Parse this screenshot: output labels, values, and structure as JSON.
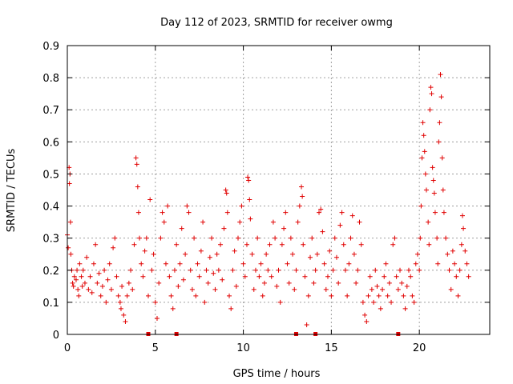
{
  "chart_data": {
    "type": "scatter",
    "title": "Day 112 of 2023, SRMTID for receiver owmg",
    "xlabel": "GPS time / hours",
    "ylabel": "SRMTID / TECUs",
    "xlim": [
      0,
      24
    ],
    "ylim": [
      0,
      0.9
    ],
    "xticks": [
      0,
      5,
      10,
      15,
      20
    ],
    "yticks": [
      0,
      0.1,
      0.2,
      0.3,
      0.4,
      0.5,
      0.6,
      0.7,
      0.8,
      0.9
    ],
    "xtick_labels": [
      "0",
      "5",
      "10",
      "15",
      "20"
    ],
    "ytick_labels": [
      "0",
      "0.1",
      "0.2",
      "0.3",
      "0.4",
      "0.5",
      "0.6",
      "0.7",
      "0.8",
      "0.9"
    ],
    "grid": true,
    "marker": "plus",
    "color": "#e00000",
    "zero_markers_x": [
      4.6,
      6.2,
      13.0,
      14.1,
      18.8
    ],
    "series": [
      {
        "name": "SRMTID",
        "points": [
          [
            0.0,
            0.31
          ],
          [
            0.05,
            0.27
          ],
          [
            0.1,
            0.52
          ],
          [
            0.12,
            0.47
          ],
          [
            0.15,
            0.5
          ],
          [
            0.18,
            0.35
          ],
          [
            0.2,
            0.25
          ],
          [
            0.25,
            0.2
          ],
          [
            0.3,
            0.16
          ],
          [
            0.35,
            0.15
          ],
          [
            0.4,
            0.18
          ],
          [
            0.5,
            0.17
          ],
          [
            0.55,
            0.2
          ],
          [
            0.6,
            0.14
          ],
          [
            0.65,
            0.12
          ],
          [
            0.7,
            0.22
          ],
          [
            0.8,
            0.18
          ],
          [
            0.85,
            0.15
          ],
          [
            0.9,
            0.2
          ],
          [
            1.0,
            0.16
          ],
          [
            1.1,
            0.24
          ],
          [
            1.2,
            0.14
          ],
          [
            1.3,
            0.18
          ],
          [
            1.4,
            0.13
          ],
          [
            1.5,
            0.22
          ],
          [
            1.6,
            0.28
          ],
          [
            1.7,
            0.16
          ],
          [
            1.8,
            0.19
          ],
          [
            1.9,
            0.12
          ],
          [
            2.0,
            0.15
          ],
          [
            2.1,
            0.2
          ],
          [
            2.2,
            0.1
          ],
          [
            2.3,
            0.17
          ],
          [
            2.4,
            0.22
          ],
          [
            2.5,
            0.14
          ],
          [
            2.6,
            0.27
          ],
          [
            2.7,
            0.3
          ],
          [
            2.8,
            0.18
          ],
          [
            2.9,
            0.12
          ],
          [
            3.0,
            0.1
          ],
          [
            3.05,
            0.08
          ],
          [
            3.1,
            0.15
          ],
          [
            3.2,
            0.06
          ],
          [
            3.3,
            0.04
          ],
          [
            3.4,
            0.12
          ],
          [
            3.5,
            0.16
          ],
          [
            3.6,
            0.2
          ],
          [
            3.7,
            0.14
          ],
          [
            3.8,
            0.28
          ],
          [
            3.9,
            0.55
          ],
          [
            3.95,
            0.53
          ],
          [
            4.0,
            0.46
          ],
          [
            4.05,
            0.38
          ],
          [
            4.1,
            0.3
          ],
          [
            4.2,
            0.22
          ],
          [
            4.3,
            0.18
          ],
          [
            4.4,
            0.26
          ],
          [
            4.5,
            0.3
          ],
          [
            4.6,
            0.12
          ],
          [
            4.7,
            0.42
          ],
          [
            4.8,
            0.2
          ],
          [
            4.9,
            0.25
          ],
          [
            5.0,
            0.1
          ],
          [
            5.1,
            0.05
          ],
          [
            5.2,
            0.16
          ],
          [
            5.3,
            0.3
          ],
          [
            5.4,
            0.38
          ],
          [
            5.5,
            0.35
          ],
          [
            5.6,
            0.22
          ],
          [
            5.7,
            0.4
          ],
          [
            5.8,
            0.18
          ],
          [
            5.9,
            0.12
          ],
          [
            6.0,
            0.08
          ],
          [
            6.1,
            0.2
          ],
          [
            6.2,
            0.28
          ],
          [
            6.3,
            0.15
          ],
          [
            6.4,
            0.22
          ],
          [
            6.5,
            0.33
          ],
          [
            6.6,
            0.17
          ],
          [
            6.7,
            0.25
          ],
          [
            6.8,
            0.4
          ],
          [
            6.9,
            0.38
          ],
          [
            7.0,
            0.2
          ],
          [
            7.1,
            0.14
          ],
          [
            7.2,
            0.3
          ],
          [
            7.3,
            0.12
          ],
          [
            7.4,
            0.22
          ],
          [
            7.5,
            0.18
          ],
          [
            7.6,
            0.26
          ],
          [
            7.7,
            0.35
          ],
          [
            7.8,
            0.1
          ],
          [
            7.9,
            0.2
          ],
          [
            8.0,
            0.16
          ],
          [
            8.1,
            0.24
          ],
          [
            8.2,
            0.3
          ],
          [
            8.3,
            0.19
          ],
          [
            8.4,
            0.14
          ],
          [
            8.5,
            0.25
          ],
          [
            8.6,
            0.2
          ],
          [
            8.7,
            0.28
          ],
          [
            8.8,
            0.17
          ],
          [
            8.9,
            0.33
          ],
          [
            9.0,
            0.45
          ],
          [
            9.05,
            0.44
          ],
          [
            9.1,
            0.38
          ],
          [
            9.2,
            0.12
          ],
          [
            9.3,
            0.08
          ],
          [
            9.4,
            0.2
          ],
          [
            9.5,
            0.26
          ],
          [
            9.6,
            0.15
          ],
          [
            9.7,
            0.3
          ],
          [
            9.8,
            0.35
          ],
          [
            9.9,
            0.4
          ],
          [
            10.0,
            0.22
          ],
          [
            10.1,
            0.18
          ],
          [
            10.2,
            0.28
          ],
          [
            10.25,
            0.49
          ],
          [
            10.3,
            0.48
          ],
          [
            10.35,
            0.42
          ],
          [
            10.4,
            0.36
          ],
          [
            10.5,
            0.25
          ],
          [
            10.6,
            0.14
          ],
          [
            10.7,
            0.2
          ],
          [
            10.8,
            0.3
          ],
          [
            10.9,
            0.18
          ],
          [
            11.0,
            0.22
          ],
          [
            11.1,
            0.12
          ],
          [
            11.2,
            0.16
          ],
          [
            11.3,
            0.25
          ],
          [
            11.4,
            0.2
          ],
          [
            11.5,
            0.28
          ],
          [
            11.6,
            0.18
          ],
          [
            11.7,
            0.35
          ],
          [
            11.8,
            0.3
          ],
          [
            11.9,
            0.15
          ],
          [
            12.0,
            0.2
          ],
          [
            12.1,
            0.1
          ],
          [
            12.2,
            0.28
          ],
          [
            12.3,
            0.33
          ],
          [
            12.4,
            0.38
          ],
          [
            12.5,
            0.22
          ],
          [
            12.6,
            0.16
          ],
          [
            12.7,
            0.3
          ],
          [
            12.8,
            0.25
          ],
          [
            12.9,
            0.14
          ],
          [
            13.0,
            0.2
          ],
          [
            13.1,
            0.35
          ],
          [
            13.2,
            0.4
          ],
          [
            13.3,
            0.46
          ],
          [
            13.35,
            0.43
          ],
          [
            13.4,
            0.28
          ],
          [
            13.5,
            0.18
          ],
          [
            13.6,
            0.03
          ],
          [
            13.7,
            0.12
          ],
          [
            13.8,
            0.24
          ],
          [
            13.9,
            0.3
          ],
          [
            14.0,
            0.16
          ],
          [
            14.1,
            0.2
          ],
          [
            14.2,
            0.25
          ],
          [
            14.3,
            0.38
          ],
          [
            14.4,
            0.39
          ],
          [
            14.5,
            0.32
          ],
          [
            14.6,
            0.22
          ],
          [
            14.7,
            0.14
          ],
          [
            14.8,
            0.18
          ],
          [
            14.9,
            0.26
          ],
          [
            15.0,
            0.12
          ],
          [
            15.1,
            0.2
          ],
          [
            15.2,
            0.3
          ],
          [
            15.3,
            0.24
          ],
          [
            15.4,
            0.16
          ],
          [
            15.5,
            0.34
          ],
          [
            15.6,
            0.38
          ],
          [
            15.7,
            0.28
          ],
          [
            15.8,
            0.2
          ],
          [
            15.9,
            0.12
          ],
          [
            16.0,
            0.22
          ],
          [
            16.1,
            0.3
          ],
          [
            16.2,
            0.37
          ],
          [
            16.3,
            0.25
          ],
          [
            16.4,
            0.16
          ],
          [
            16.5,
            0.2
          ],
          [
            16.6,
            0.35
          ],
          [
            16.7,
            0.28
          ],
          [
            16.8,
            0.1
          ],
          [
            16.9,
            0.06
          ],
          [
            17.0,
            0.04
          ],
          [
            17.1,
            0.12
          ],
          [
            17.2,
            0.18
          ],
          [
            17.3,
            0.14
          ],
          [
            17.4,
            0.1
          ],
          [
            17.5,
            0.2
          ],
          [
            17.6,
            0.15
          ],
          [
            17.7,
            0.12
          ],
          [
            17.8,
            0.08
          ],
          [
            17.9,
            0.14
          ],
          [
            18.0,
            0.18
          ],
          [
            18.1,
            0.22
          ],
          [
            18.2,
            0.12
          ],
          [
            18.3,
            0.16
          ],
          [
            18.4,
            0.1
          ],
          [
            18.5,
            0.28
          ],
          [
            18.6,
            0.3
          ],
          [
            18.7,
            0.18
          ],
          [
            18.8,
            0.14
          ],
          [
            18.9,
            0.2
          ],
          [
            19.0,
            0.16
          ],
          [
            19.1,
            0.12
          ],
          [
            19.2,
            0.08
          ],
          [
            19.3,
            0.15
          ],
          [
            19.4,
            0.2
          ],
          [
            19.5,
            0.18
          ],
          [
            19.6,
            0.12
          ],
          [
            19.7,
            0.1
          ],
          [
            19.8,
            0.22
          ],
          [
            19.9,
            0.25
          ],
          [
            20.0,
            0.2
          ],
          [
            20.05,
            0.3
          ],
          [
            20.1,
            0.4
          ],
          [
            20.15,
            0.55
          ],
          [
            20.2,
            0.66
          ],
          [
            20.25,
            0.62
          ],
          [
            20.3,
            0.57
          ],
          [
            20.35,
            0.5
          ],
          [
            20.4,
            0.45
          ],
          [
            20.5,
            0.35
          ],
          [
            20.55,
            0.28
          ],
          [
            20.6,
            0.7
          ],
          [
            20.65,
            0.77
          ],
          [
            20.7,
            0.75
          ],
          [
            20.75,
            0.52
          ],
          [
            20.8,
            0.48
          ],
          [
            20.85,
            0.44
          ],
          [
            20.9,
            0.38
          ],
          [
            21.0,
            0.3
          ],
          [
            21.05,
            0.22
          ],
          [
            21.1,
            0.6
          ],
          [
            21.15,
            0.66
          ],
          [
            21.2,
            0.81
          ],
          [
            21.25,
            0.74
          ],
          [
            21.3,
            0.55
          ],
          [
            21.35,
            0.45
          ],
          [
            21.4,
            0.38
          ],
          [
            21.5,
            0.3
          ],
          [
            21.6,
            0.25
          ],
          [
            21.7,
            0.2
          ],
          [
            21.8,
            0.14
          ],
          [
            21.9,
            0.26
          ],
          [
            22.0,
            0.22
          ],
          [
            22.1,
            0.18
          ],
          [
            22.2,
            0.12
          ],
          [
            22.3,
            0.2
          ],
          [
            22.4,
            0.28
          ],
          [
            22.45,
            0.37
          ],
          [
            22.5,
            0.33
          ],
          [
            22.6,
            0.26
          ],
          [
            22.7,
            0.22
          ],
          [
            22.8,
            0.18
          ]
        ]
      }
    ]
  }
}
